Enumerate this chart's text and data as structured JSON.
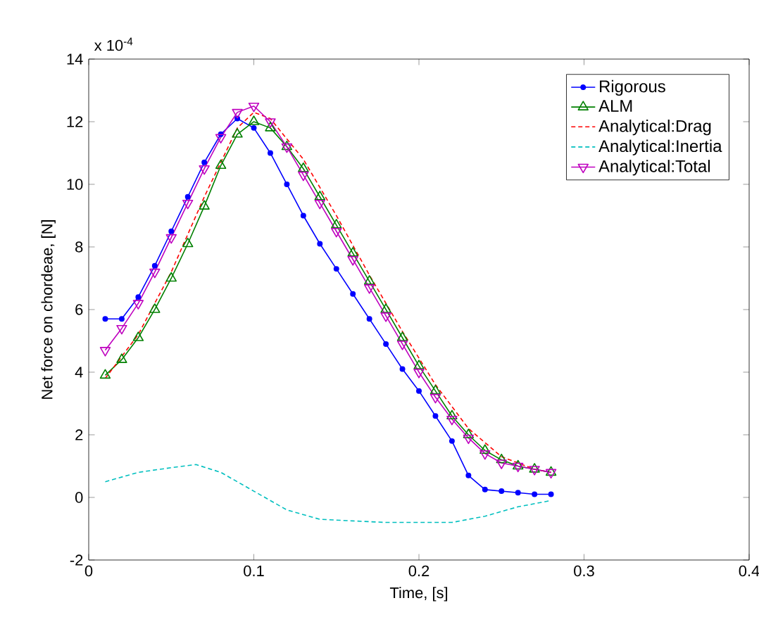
{
  "chart_data": {
    "type": "line",
    "xlabel": "Time, [s]",
    "ylabel": "Net force on chordeae, [N]",
    "annotations": [
      "x 10$^{-4}$"
    ],
    "xlim": [
      0,
      0.4
    ],
    "xticks": [
      0,
      0.1,
      0.2,
      0.3,
      0.4
    ],
    "ylim": [
      -2,
      14
    ],
    "yticks": [
      -2,
      0,
      2,
      4,
      6,
      8,
      10,
      12,
      14
    ],
    "legend": "top right",
    "grid": false,
    "series": [
      {
        "name": "Rigorous",
        "color": "#0000ff",
        "marker": "circle",
        "line_style": "solid",
        "x": [
          0.01,
          0.02,
          0.03,
          0.04,
          0.05,
          0.06,
          0.07,
          0.08,
          0.09,
          0.1,
          0.11,
          0.12,
          0.13,
          0.14,
          0.15,
          0.16,
          0.17,
          0.18,
          0.19,
          0.2,
          0.21,
          0.22,
          0.23,
          0.24,
          0.25,
          0.26,
          0.27,
          0.28
        ],
        "values": [
          5.7,
          5.7,
          6.4,
          7.4,
          8.5,
          9.6,
          10.7,
          11.6,
          12.1,
          11.8,
          11.0,
          10.0,
          9.0,
          8.1,
          7.3,
          6.5,
          5.7,
          4.9,
          4.1,
          3.4,
          2.6,
          1.8,
          0.7,
          0.25,
          0.2,
          0.15,
          0.1,
          0.1
        ]
      },
      {
        "name": "ALM",
        "color": "#008000",
        "marker": "triangle",
        "line_style": "solid",
        "x": [
          0.01,
          0.02,
          0.03,
          0.04,
          0.05,
          0.06,
          0.07,
          0.08,
          0.09,
          0.1,
          0.11,
          0.12,
          0.13,
          0.14,
          0.15,
          0.16,
          0.17,
          0.18,
          0.19,
          0.2,
          0.21,
          0.22,
          0.23,
          0.24,
          0.25,
          0.26,
          0.27,
          0.28
        ],
        "values": [
          3.9,
          4.4,
          5.1,
          6.0,
          7.0,
          8.1,
          9.3,
          10.6,
          11.6,
          12.0,
          11.8,
          11.2,
          10.5,
          9.6,
          8.7,
          7.8,
          6.9,
          6.0,
          5.1,
          4.2,
          3.4,
          2.6,
          2.0,
          1.5,
          1.2,
          1.0,
          0.9,
          0.8
        ]
      },
      {
        "name": "Analytical:Drag",
        "color": "#ff0000",
        "marker": "none",
        "line_style": "dashed",
        "x": [
          0.01,
          0.03,
          0.05,
          0.07,
          0.09,
          0.1,
          0.11,
          0.13,
          0.15,
          0.17,
          0.19,
          0.21,
          0.23,
          0.25,
          0.27,
          0.28
        ],
        "values": [
          3.8,
          5.2,
          7.2,
          9.6,
          11.8,
          12.3,
          12.1,
          10.8,
          9.0,
          7.1,
          5.3,
          3.6,
          2.2,
          1.3,
          0.9,
          0.8
        ]
      },
      {
        "name": "Analytical:Inertia",
        "color": "#00bfbf",
        "marker": "none",
        "line_style": "dashed",
        "x": [
          0.01,
          0.03,
          0.05,
          0.065,
          0.08,
          0.1,
          0.12,
          0.14,
          0.16,
          0.18,
          0.2,
          0.22,
          0.24,
          0.26,
          0.28
        ],
        "values": [
          0.5,
          0.8,
          0.95,
          1.05,
          0.8,
          0.2,
          -0.4,
          -0.7,
          -0.75,
          -0.8,
          -0.8,
          -0.8,
          -0.6,
          -0.3,
          -0.1
        ]
      },
      {
        "name": "Analytical:Total",
        "color": "#bf00bf",
        "marker": "triangle-down",
        "line_style": "solid",
        "x": [
          0.01,
          0.02,
          0.03,
          0.04,
          0.05,
          0.06,
          0.07,
          0.08,
          0.09,
          0.1,
          0.11,
          0.12,
          0.13,
          0.14,
          0.15,
          0.16,
          0.17,
          0.18,
          0.19,
          0.2,
          0.21,
          0.22,
          0.23,
          0.24,
          0.25,
          0.26,
          0.27,
          0.28
        ],
        "values": [
          4.7,
          5.4,
          6.2,
          7.2,
          8.3,
          9.4,
          10.5,
          11.5,
          12.3,
          12.5,
          12.0,
          11.2,
          10.3,
          9.4,
          8.5,
          7.6,
          6.7,
          5.8,
          4.9,
          4.0,
          3.2,
          2.5,
          1.9,
          1.4,
          1.1,
          1.0,
          0.9,
          0.8
        ]
      }
    ]
  }
}
